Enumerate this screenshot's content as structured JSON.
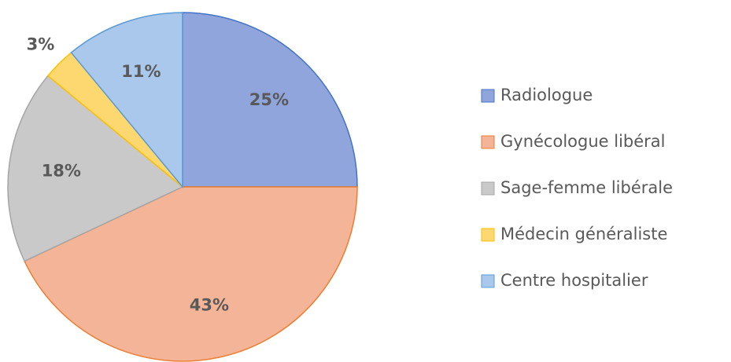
{
  "chart_data": {
    "type": "pie",
    "categories": [
      "Radiologue",
      "Gynécologue libéral",
      "Sage-femme libérale",
      "Médecin généraliste",
      "Centre hospitalier"
    ],
    "values": [
      25,
      43,
      18,
      3,
      11
    ],
    "value_labels": [
      "25%",
      "43%",
      "18%",
      "3%",
      "11%"
    ],
    "colors": [
      "#8fa5dc",
      "#f4b497",
      "#c9c9c9",
      "#fdd870",
      "#a9c8ec"
    ],
    "legend": "right"
  }
}
